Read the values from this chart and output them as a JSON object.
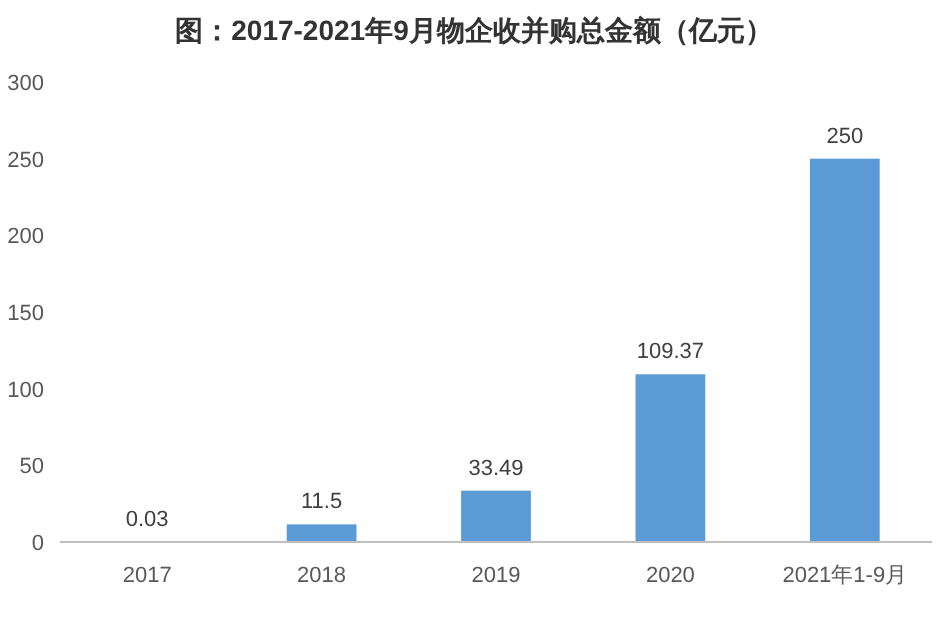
{
  "chart_data": {
    "type": "bar",
    "title": "图：2017-2021年9月物企收并购总金额（亿元）",
    "categories": [
      "2017",
      "2018",
      "2019",
      "2020",
      "2021年1-9月"
    ],
    "values": [
      0.03,
      11.5,
      33.49,
      109.37,
      250
    ],
    "color": "#5b9bd5",
    "ylim": [
      0,
      300
    ],
    "yticks": [
      0,
      50,
      100,
      150,
      200,
      250,
      300
    ],
    "data_labels": true,
    "grid": false
  }
}
